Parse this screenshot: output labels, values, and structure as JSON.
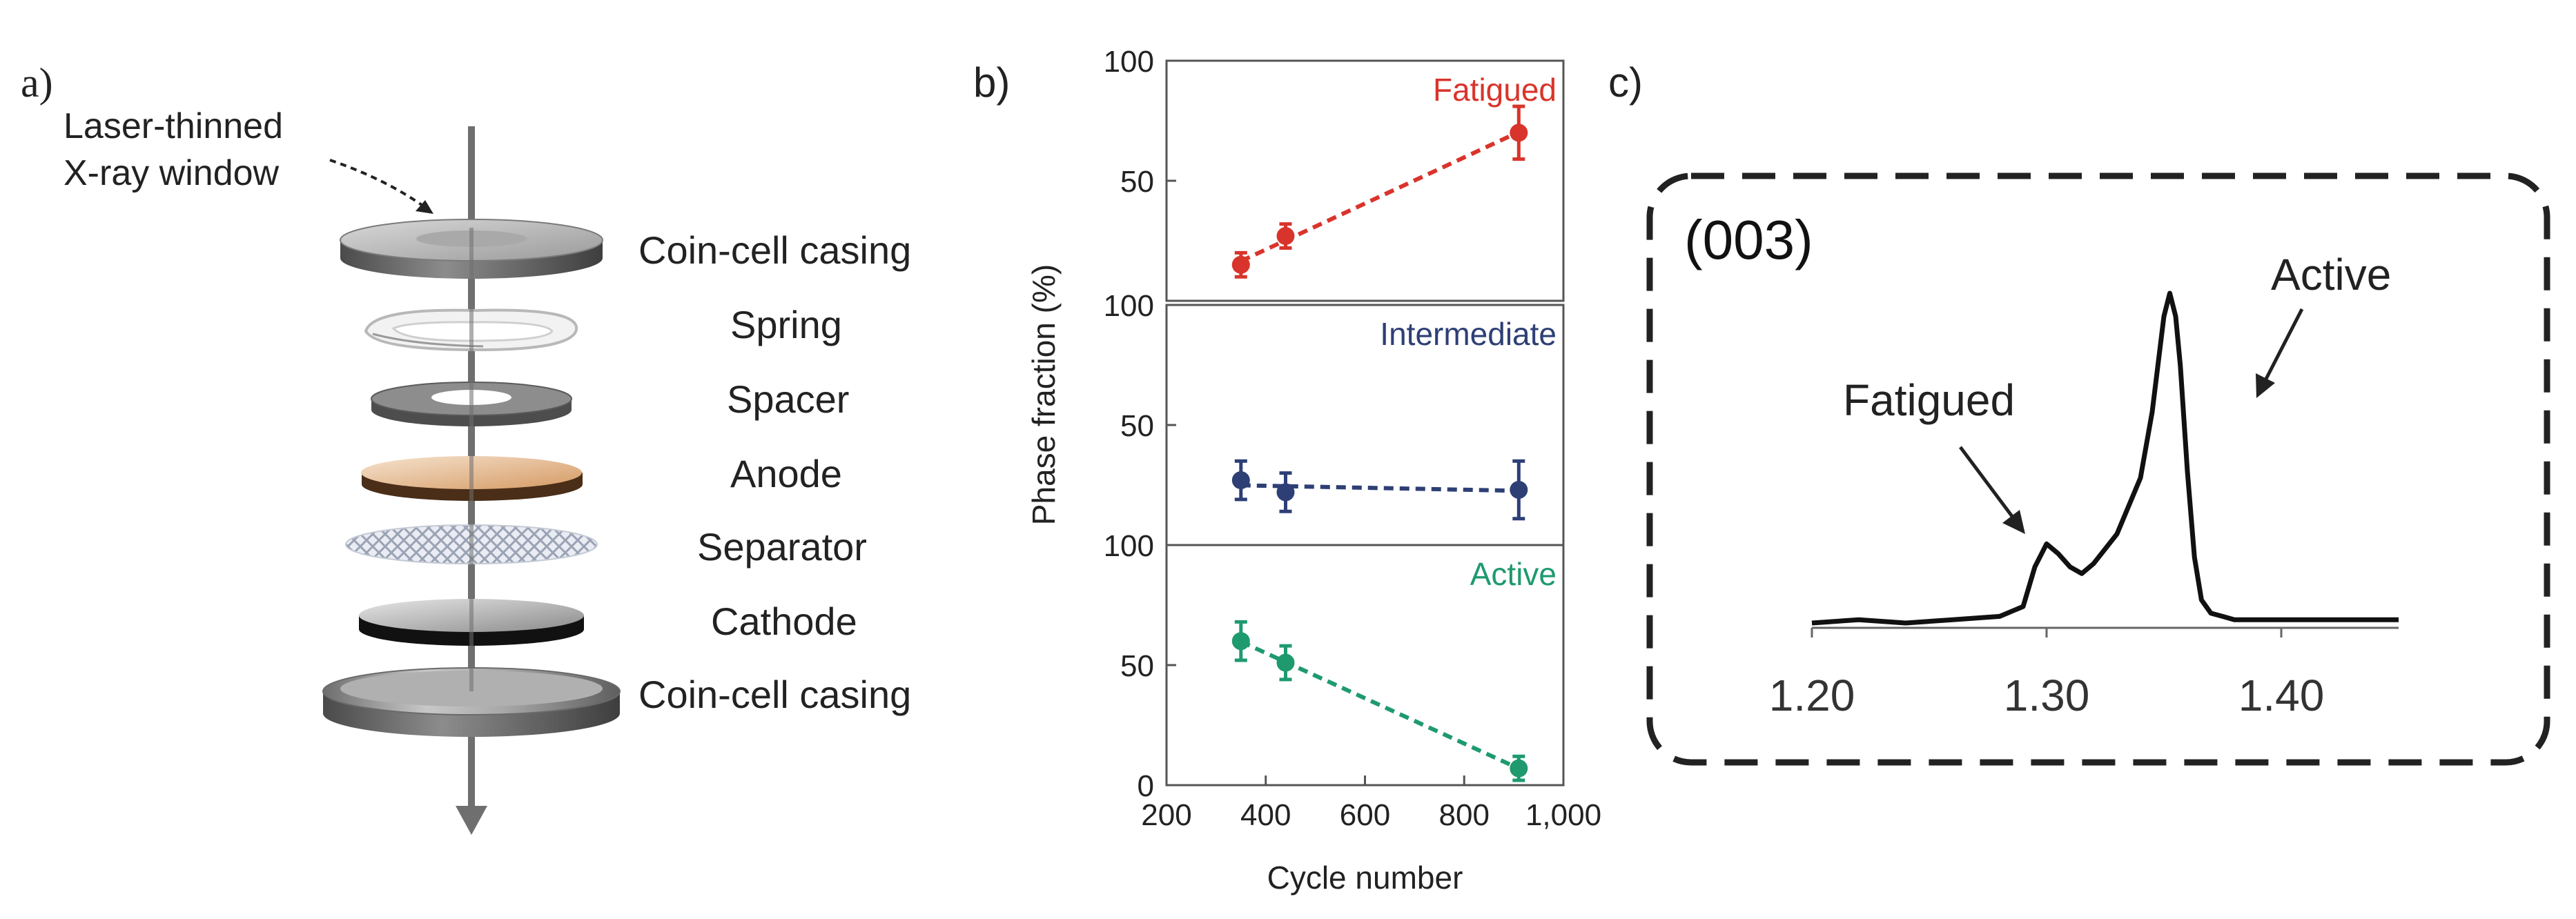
{
  "figure": {
    "panel_a": {
      "label": "a)",
      "window_label_line1": "Laser-thinned",
      "window_label_line2": "X-ray window",
      "components": [
        "Coin-cell casing",
        "Spring",
        "Spacer",
        "Anode",
        "Separator",
        "Cathode",
        "Coin-cell casing"
      ]
    },
    "panel_b": {
      "label": "b)"
    },
    "panel_c": {
      "label": "c)"
    }
  },
  "colors": {
    "fatigued": "#d9342b",
    "intermediate": "#2d3f75",
    "active": "#1e9a6e",
    "axis": "#555555",
    "line": "#111111"
  },
  "chart_data": [
    {
      "type": "scatter",
      "title": "",
      "xlabel": "Cycle number",
      "ylabel": "Phase fraction (%)",
      "xlim": [
        200,
        1000
      ],
      "x_ticks": [
        "200",
        "400",
        "600",
        "800",
        "1,000"
      ],
      "subplots": [
        {
          "name": "Fatigued",
          "ylim": [
            0,
            100
          ],
          "y_ticks": [
            "100",
            "50"
          ],
          "points": [
            {
              "x": 350,
              "y": 15,
              "err": 5
            },
            {
              "x": 440,
              "y": 27,
              "err": 5
            },
            {
              "x": 910,
              "y": 70,
              "err": 11
            }
          ],
          "trend": "dashed linear fit"
        },
        {
          "name": "Intermediate",
          "ylim": [
            0,
            100
          ],
          "y_ticks": [
            "100",
            "50"
          ],
          "points": [
            {
              "x": 350,
              "y": 27,
              "err": 8
            },
            {
              "x": 440,
              "y": 22,
              "err": 8
            },
            {
              "x": 910,
              "y": 23,
              "err": 12
            }
          ],
          "trend": "dashed linear fit"
        },
        {
          "name": "Active",
          "ylim": [
            0,
            100
          ],
          "y_ticks": [
            "100",
            "50",
            "0"
          ],
          "points": [
            {
              "x": 350,
              "y": 60,
              "err": 8
            },
            {
              "x": 440,
              "y": 51,
              "err": 7
            },
            {
              "x": 910,
              "y": 7,
              "err": 5
            }
          ],
          "trend": "dashed linear fit"
        }
      ]
    },
    {
      "type": "line",
      "title": "(003)",
      "xlabel": "",
      "ylabel": "",
      "xlim": [
        1.2,
        1.45
      ],
      "x_ticks": [
        "1.20",
        "1.30",
        "1.40"
      ],
      "annotations": [
        "Fatigued",
        "Active"
      ],
      "series": [
        {
          "name": "(003) diffraction peak",
          "x": [
            1.2,
            1.22,
            1.24,
            1.26,
            1.28,
            1.29,
            1.295,
            1.3,
            1.305,
            1.31,
            1.315,
            1.32,
            1.33,
            1.34,
            1.345,
            1.35,
            1.3525,
            1.355,
            1.357,
            1.36,
            1.363,
            1.366,
            1.37,
            1.375,
            1.38,
            1.39,
            1.4,
            1.42,
            1.44,
            1.45
          ],
          "y": [
            0.0,
            0.01,
            0.0,
            0.01,
            0.02,
            0.05,
            0.17,
            0.24,
            0.21,
            0.17,
            0.15,
            0.18,
            0.27,
            0.44,
            0.64,
            0.93,
            1.0,
            0.93,
            0.78,
            0.46,
            0.2,
            0.07,
            0.03,
            0.02,
            0.01,
            0.01,
            0.01,
            0.01,
            0.01,
            0.01
          ]
        }
      ]
    }
  ]
}
